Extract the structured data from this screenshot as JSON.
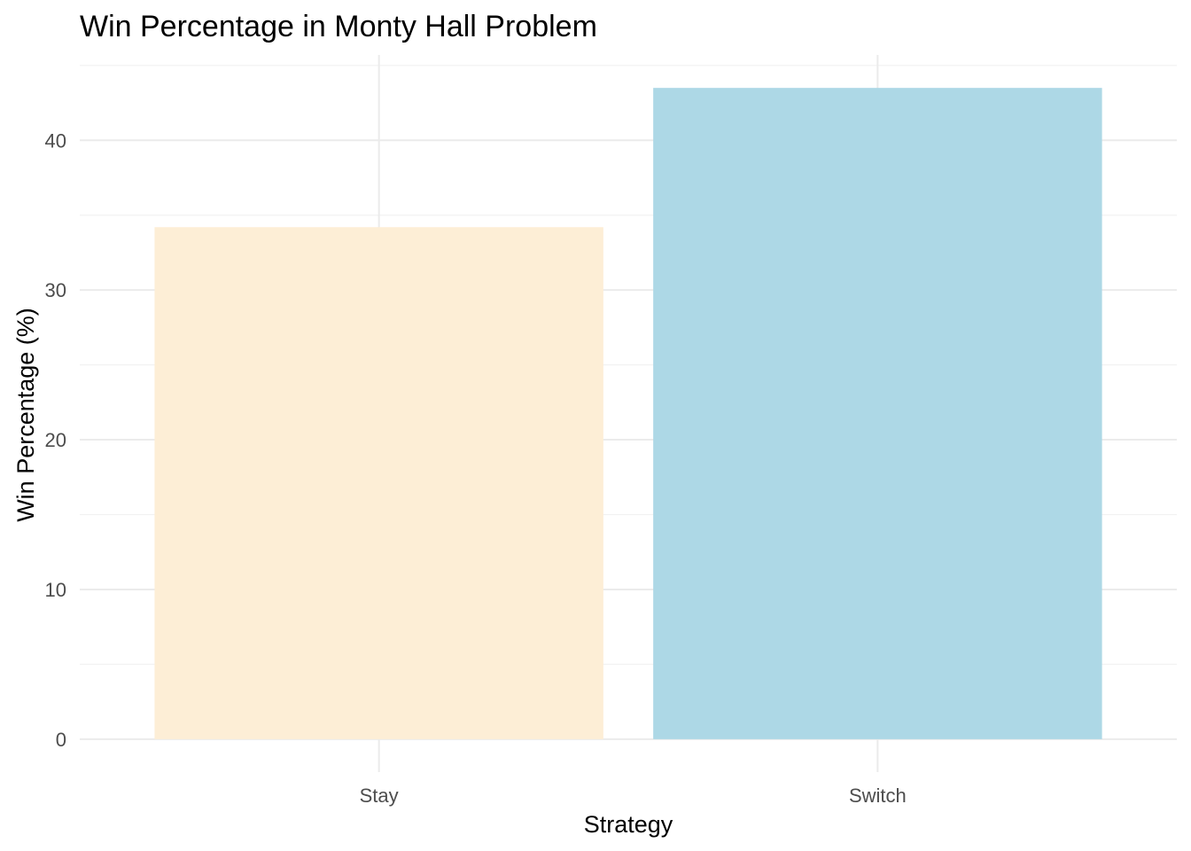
{
  "chart_data": {
    "type": "bar",
    "title": "Win Percentage in Monty Hall Problem",
    "xlabel": "Strategy",
    "ylabel": "Win Percentage (%)",
    "categories": [
      "Stay",
      "Switch"
    ],
    "values": [
      34.2,
      43.5
    ],
    "colors": [
      "#FDEED6",
      "#ADD8E6"
    ],
    "ylim": [
      -2.2,
      45.7
    ],
    "yticks": [
      0,
      10,
      20,
      30,
      40
    ],
    "ytick_labels": [
      "0",
      "10",
      "20",
      "30",
      "40"
    ],
    "grid": true,
    "legend": "none"
  }
}
